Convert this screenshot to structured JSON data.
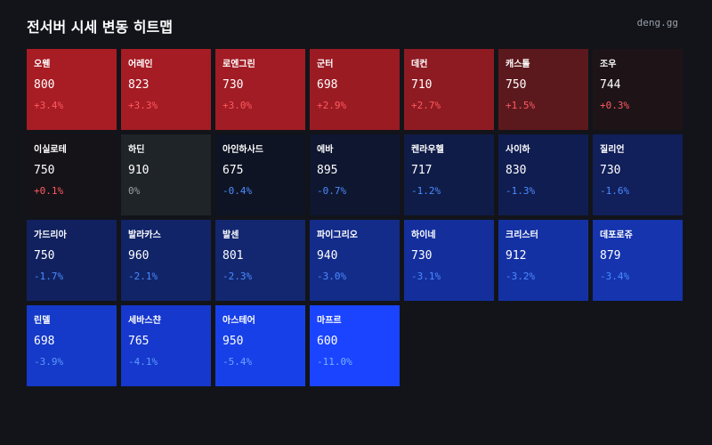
{
  "header": {
    "title": "전서버 시세 변동 히트맵",
    "brand": "deng.gg"
  },
  "tiles": [
    {
      "name": "오웬",
      "price": "800",
      "change": "+3.4%",
      "color": "#a81c24",
      "change_color": "#ff5a60"
    },
    {
      "name": "어레인",
      "price": "823",
      "change": "+3.3%",
      "color": "#a51c24",
      "change_color": "#ff5a60"
    },
    {
      "name": "로엔그린",
      "price": "730",
      "change": "+3.0%",
      "color": "#a11c24",
      "change_color": "#ff5a60"
    },
    {
      "name": "군터",
      "price": "698",
      "change": "+2.9%",
      "color": "#9b1b23",
      "change_color": "#ff5a60"
    },
    {
      "name": "데컨",
      "price": "710",
      "change": "+2.7%",
      "color": "#8e1a22",
      "change_color": "#ff5a60"
    },
    {
      "name": "캐스톨",
      "price": "750",
      "change": "+1.5%",
      "color": "#5c191d",
      "change_color": "#ff5a60"
    },
    {
      "name": "조우",
      "price": "744",
      "change": "+0.3%",
      "color": "#1e1418",
      "change_color": "#ff5a60"
    },
    {
      "name": "이실로테",
      "price": "750",
      "change": "+0.1%",
      "color": "#161318",
      "change_color": "#ff5a60"
    },
    {
      "name": "하딘",
      "price": "910",
      "change": "0%",
      "color": "#1f2428",
      "change_color": "#9aa0a8"
    },
    {
      "name": "아인하사드",
      "price": "675",
      "change": "-0.4%",
      "color": "#0f1424",
      "change_color": "#4a8cff"
    },
    {
      "name": "에바",
      "price": "895",
      "change": "-0.7%",
      "color": "#0f1630",
      "change_color": "#4a8cff"
    },
    {
      "name": "켄라우헬",
      "price": "717",
      "change": "-1.2%",
      "color": "#101c48",
      "change_color": "#4a8cff"
    },
    {
      "name": "사이하",
      "price": "830",
      "change": "-1.3%",
      "color": "#101d50",
      "change_color": "#4a8cff"
    },
    {
      "name": "질리언",
      "price": "730",
      "change": "-1.6%",
      "color": "#111f5a",
      "change_color": "#4a8cff"
    },
    {
      "name": "가드리아",
      "price": "750",
      "change": "-1.7%",
      "color": "#112160",
      "change_color": "#4a8cff"
    },
    {
      "name": "발라카스",
      "price": "960",
      "change": "-2.1%",
      "color": "#112468",
      "change_color": "#4a8cff"
    },
    {
      "name": "발센",
      "price": "801",
      "change": "-2.3%",
      "color": "#122770",
      "change_color": "#4a8cff"
    },
    {
      "name": "파이그리오",
      "price": "940",
      "change": "-3.0%",
      "color": "#132c8a",
      "change_color": "#4a8cff"
    },
    {
      "name": "하이네",
      "price": "730",
      "change": "-3.1%",
      "color": "#142f9c",
      "change_color": "#4a8cff"
    },
    {
      "name": "크리스터",
      "price": "912",
      "change": "-3.2%",
      "color": "#1431a4",
      "change_color": "#4a8cff"
    },
    {
      "name": "데포로쥬",
      "price": "879",
      "change": "-3.4%",
      "color": "#1534ae",
      "change_color": "#4a8cff"
    },
    {
      "name": "린델",
      "price": "698",
      "change": "-3.9%",
      "color": "#1539c8",
      "change_color": "#5a9aff"
    },
    {
      "name": "세바스챤",
      "price": "765",
      "change": "-4.1%",
      "color": "#1638cc",
      "change_color": "#5a9aff"
    },
    {
      "name": "아스테어",
      "price": "950",
      "change": "-5.4%",
      "color": "#1840e8",
      "change_color": "#6aa4ff"
    },
    {
      "name": "마프르",
      "price": "600",
      "change": "-11.0%",
      "color": "#1a44ff",
      "change_color": "#7ab0ff"
    }
  ]
}
